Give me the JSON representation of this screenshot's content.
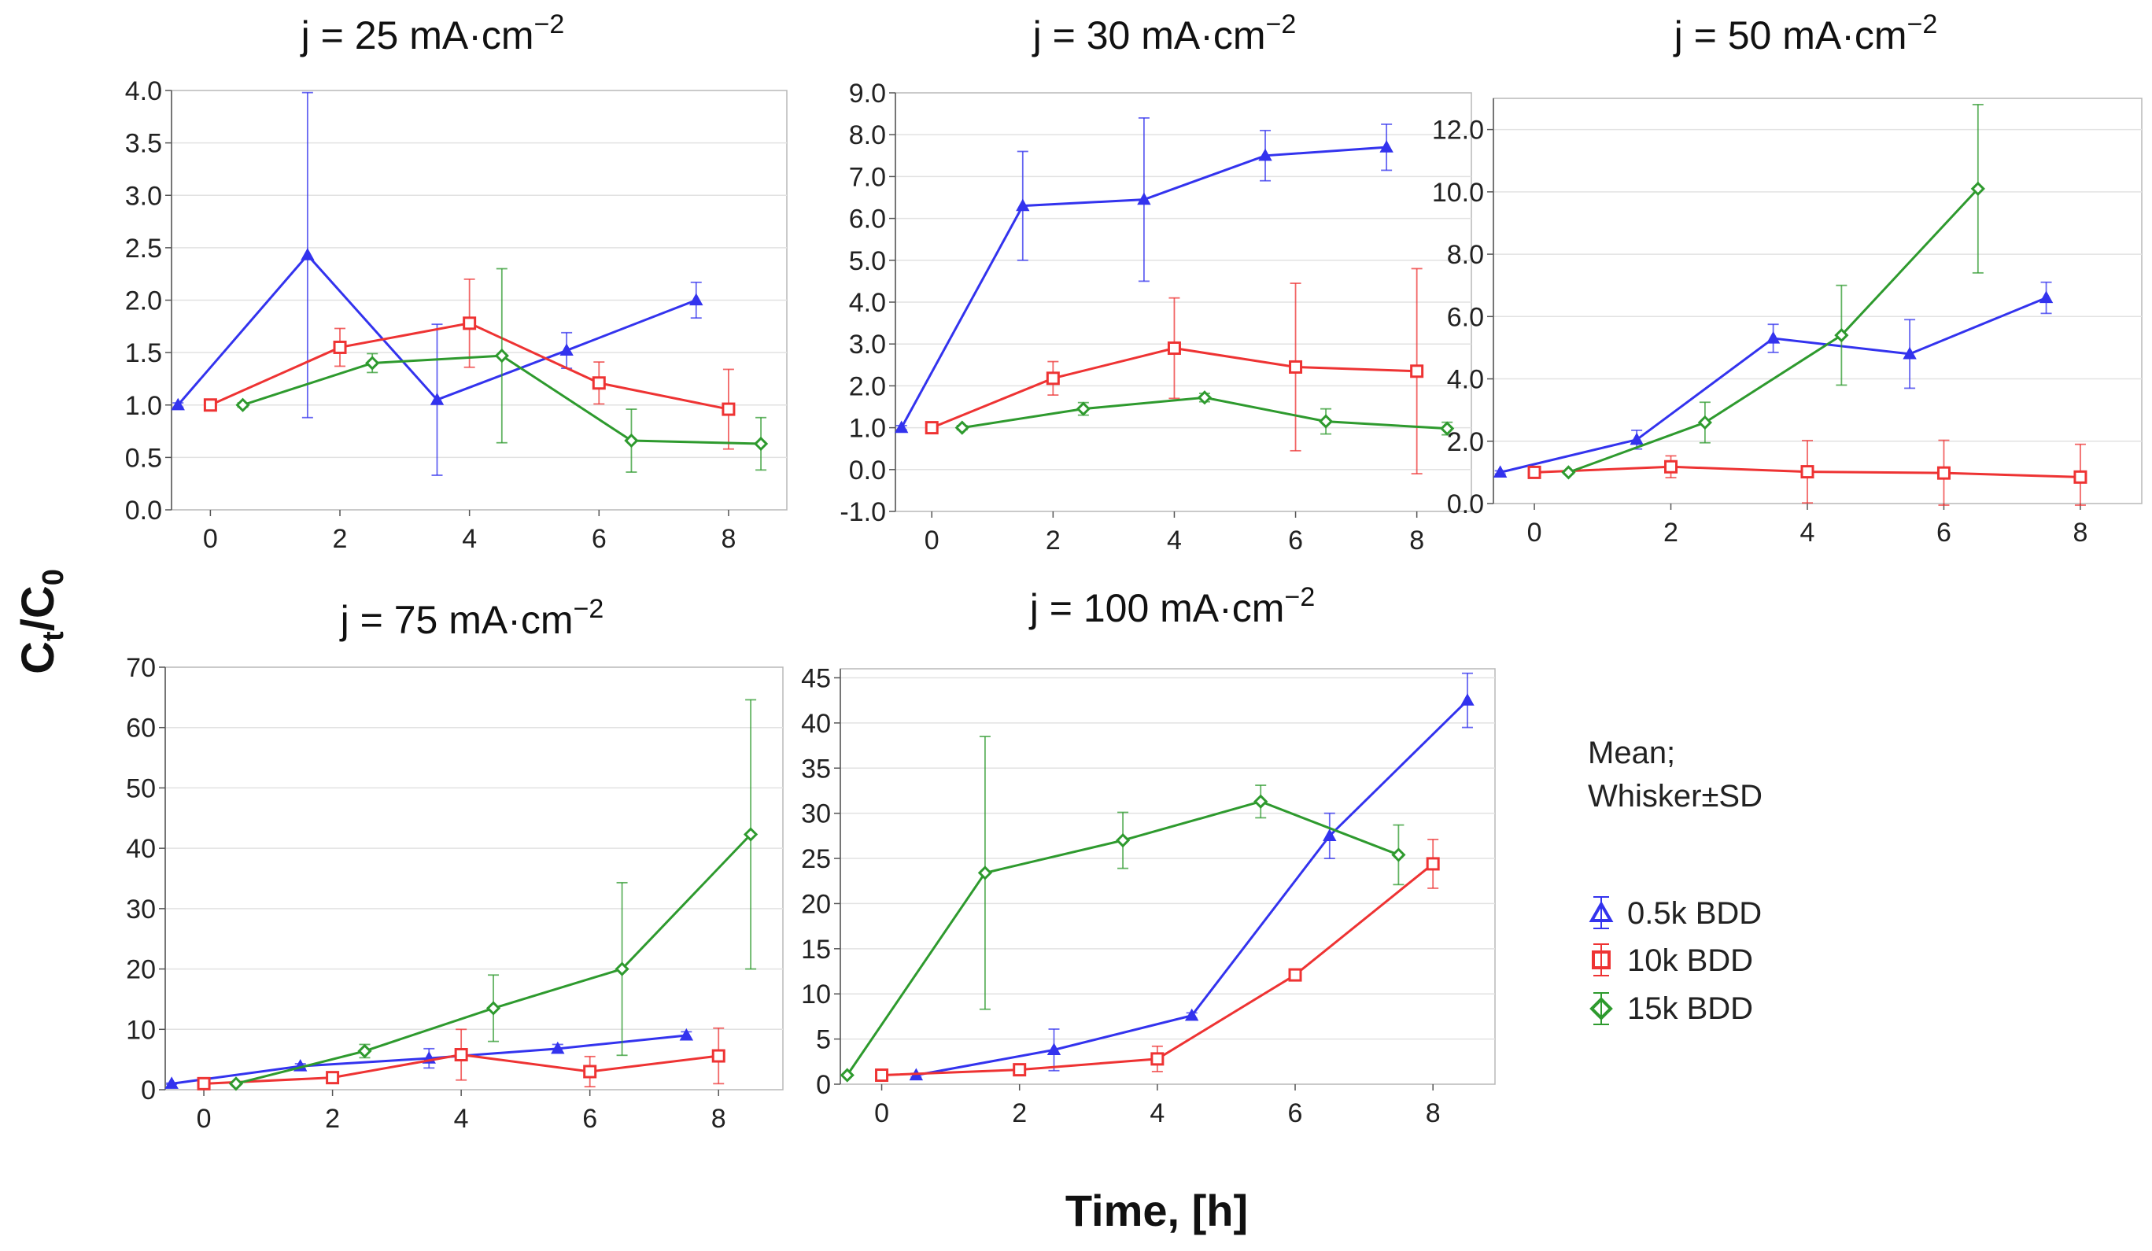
{
  "figure": {
    "ylabel_main": "C",
    "ylabel_sub_t": "t",
    "ylabel_slash": "/C",
    "ylabel_sub_0": "0",
    "xlabel": "Time, [h]",
    "legend": {
      "header_line1": "Mean;",
      "header_line2": "Whisker±SD",
      "entries": [
        "0.5k BDD",
        "10k BDD",
        "15k BDD"
      ]
    }
  },
  "series_style": {
    "0.5k BDD": {
      "color": "#3333ee",
      "marker": "triangle-up"
    },
    "10k BDD": {
      "color": "#ee3333",
      "marker": "square"
    },
    "15k BDD": {
      "color": "#2e9a2e",
      "marker": "diamond"
    }
  },
  "chart_data": [
    {
      "type": "line",
      "title_prefix": "j = 25 mA·cm",
      "title_sup": "−2",
      "xlabel": "",
      "ylabel": "",
      "xlim": [
        -0.6,
        8.9
      ],
      "ylim": [
        0.0,
        4.0
      ],
      "xticks": [
        "0",
        "2",
        "4",
        "6",
        "8"
      ],
      "yticks": [
        "0.0",
        "0.5",
        "1.0",
        "1.5",
        "2.0",
        "2.5",
        "3.0",
        "3.5",
        "4.0"
      ],
      "series": [
        {
          "name": "0.5k BDD",
          "x": [
            -0.5,
            1.5,
            3.5,
            5.5,
            7.5
          ],
          "values": [
            1.0,
            2.43,
            1.05,
            1.52,
            2.0
          ],
          "sd": [
            0.02,
            1.55,
            0.72,
            0.17,
            0.17
          ]
        },
        {
          "name": "10k BDD",
          "x": [
            0,
            2,
            4,
            6,
            8
          ],
          "values": [
            1.0,
            1.55,
            1.78,
            1.21,
            0.96
          ],
          "sd": [
            0.02,
            0.18,
            0.42,
            0.2,
            0.38
          ]
        },
        {
          "name": "15k BDD",
          "x": [
            0.5,
            2.5,
            4.5,
            6.5,
            8.5
          ],
          "values": [
            1.0,
            1.4,
            1.47,
            0.66,
            0.63
          ],
          "sd": [
            0.02,
            0.09,
            0.83,
            0.3,
            0.25
          ]
        }
      ]
    },
    {
      "type": "line",
      "title_prefix": "j = 30 mA·cm",
      "title_sup": "−2",
      "xlabel": "",
      "ylabel": "",
      "xlim": [
        -0.6,
        8.9
      ],
      "ylim": [
        -1.0,
        9.0
      ],
      "xticks": [
        "0",
        "2",
        "4",
        "6",
        "8"
      ],
      "yticks": [
        "-1.0",
        "0.0",
        "1.0",
        "2.0",
        "3.0",
        "4.0",
        "5.0",
        "6.0",
        "7.0",
        "8.0",
        "9.0"
      ],
      "series": [
        {
          "name": "0.5k BDD",
          "x": [
            -0.5,
            1.5,
            3.5,
            5.5,
            7.5
          ],
          "values": [
            1.0,
            6.3,
            6.45,
            7.5,
            7.7
          ],
          "sd": [
            0.05,
            1.3,
            1.95,
            0.6,
            0.55
          ]
        },
        {
          "name": "10k BDD",
          "x": [
            0,
            2,
            4,
            6,
            8
          ],
          "values": [
            1.0,
            2.18,
            2.9,
            2.45,
            2.35
          ],
          "sd": [
            0.05,
            0.4,
            1.2,
            2.0,
            2.45
          ]
        },
        {
          "name": "15k BDD",
          "x": [
            0.5,
            2.5,
            4.5,
            6.5,
            8.5
          ],
          "values": [
            1.0,
            1.45,
            1.72,
            1.15,
            0.98
          ],
          "sd": [
            0.05,
            0.15,
            0.1,
            0.3,
            0.15
          ]
        }
      ]
    },
    {
      "type": "line",
      "title_prefix": "j = 50 mA·cm",
      "title_sup": "−2",
      "xlabel": "",
      "ylabel": "",
      "xlim": [
        -0.6,
        8.9
      ],
      "ylim": [
        0.0,
        13.0
      ],
      "xticks": [
        "0",
        "2",
        "4",
        "6",
        "8"
      ],
      "yticks": [
        "0.0",
        "2.0",
        "4.0",
        "6.0",
        "8.0",
        "10.0",
        "12.0"
      ],
      "series": [
        {
          "name": "0.5k BDD",
          "x": [
            -0.5,
            1.5,
            3.5,
            5.5,
            7.5
          ],
          "values": [
            1.0,
            2.05,
            5.3,
            4.8,
            6.6
          ],
          "sd": [
            0.05,
            0.3,
            0.45,
            1.1,
            0.5
          ]
        },
        {
          "name": "10k BDD",
          "x": [
            0,
            2,
            4,
            6,
            8
          ],
          "values": [
            1.0,
            1.18,
            1.02,
            0.98,
            0.85
          ],
          "sd": [
            0.05,
            0.35,
            1.0,
            1.05,
            1.05
          ]
        },
        {
          "name": "15k BDD",
          "x": [
            0.5,
            2.5,
            4.5,
            6.5,
            8.5
          ],
          "values": [
            1.0,
            2.6,
            5.4,
            10.1,
            null
          ],
          "sd": [
            0.05,
            0.65,
            1.6,
            2.7,
            null
          ]
        }
      ]
    },
    {
      "type": "line",
      "title_prefix": "j = 75 mA·cm",
      "title_sup": "−2",
      "xlabel": "",
      "ylabel": "",
      "xlim": [
        -0.6,
        9.0
      ],
      "ylim": [
        0,
        70
      ],
      "xticks": [
        "0",
        "2",
        "4",
        "6",
        "8"
      ],
      "yticks": [
        "0",
        "10",
        "20",
        "30",
        "40",
        "50",
        "60",
        "70"
      ],
      "series": [
        {
          "name": "0.5k BDD",
          "x": [
            -0.5,
            1.5,
            3.5,
            5.5,
            7.5
          ],
          "values": [
            1.0,
            3.9,
            5.2,
            6.8,
            9.0
          ],
          "sd": [
            0.1,
            0.4,
            1.6,
            0.7,
            0.6
          ]
        },
        {
          "name": "10k BDD",
          "x": [
            0,
            2,
            4,
            6,
            8
          ],
          "values": [
            1.0,
            2.0,
            5.8,
            3.0,
            5.6
          ],
          "sd": [
            0.1,
            0.5,
            4.2,
            2.5,
            4.6
          ]
        },
        {
          "name": "15k BDD",
          "x": [
            0.5,
            2.5,
            4.5,
            6.5,
            8.5
          ],
          "values": [
            1.0,
            6.4,
            13.5,
            20.0,
            42.3
          ],
          "sd": [
            0.1,
            1.1,
            5.5,
            14.3,
            22.3
          ]
        }
      ]
    },
    {
      "type": "line",
      "title_prefix": "j = 100 mA·cm",
      "title_sup": "−2",
      "xlabel": "",
      "ylabel": "",
      "xlim": [
        -0.6,
        8.9
      ],
      "ylim": [
        0,
        46
      ],
      "xticks": [
        "0",
        "2",
        "4",
        "6",
        "8"
      ],
      "yticks": [
        "0",
        "5",
        "10",
        "15",
        "20",
        "25",
        "30",
        "35",
        "40",
        "45"
      ],
      "series": [
        {
          "name": "0.5k BDD",
          "x": [
            0.5,
            2.5,
            4.5,
            6.5,
            8.5
          ],
          "values": [
            1.0,
            3.8,
            7.6,
            27.5,
            42.5
          ],
          "sd": [
            0.2,
            2.3,
            0.3,
            2.5,
            3.0
          ]
        },
        {
          "name": "10k BDD",
          "x": [
            0,
            2,
            4,
            6,
            8
          ],
          "values": [
            1.0,
            1.6,
            2.8,
            12.1,
            24.4
          ],
          "sd": [
            0.2,
            0.5,
            1.4,
            0.5,
            2.7
          ]
        },
        {
          "name": "15k BDD",
          "x": [
            -0.5,
            1.5,
            3.5,
            5.5,
            7.5
          ],
          "values": [
            1.0,
            23.4,
            27.0,
            31.3,
            25.4
          ],
          "sd": [
            0.1,
            15.1,
            3.1,
            1.8,
            3.3
          ]
        }
      ]
    }
  ]
}
